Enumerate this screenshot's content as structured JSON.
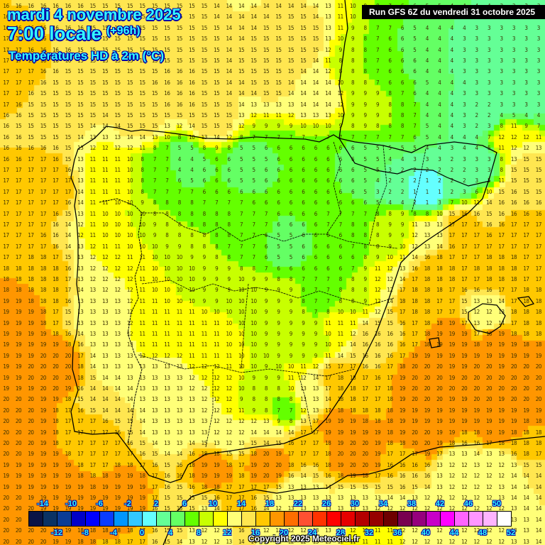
{
  "header": {
    "date": "mardi 4 novembre 2025",
    "time": "7:00 locale",
    "lead": "(+96h)",
    "variable": "Températures HD à 2m (°C)",
    "run": "Run GFS 6Z du vendredi 31 octobre 2025"
  },
  "footer": {
    "copyright": "Copyright 2025 Meteociel.fr"
  },
  "legend": {
    "top_labels": [
      "-14",
      "-10",
      "-6",
      "-2",
      "2",
      "6",
      "10",
      "14",
      "18",
      "22",
      "26",
      "30",
      "34",
      "38",
      "42",
      "46",
      "50"
    ],
    "bottom_labels": [
      "-12",
      "-8",
      "-4",
      "0",
      "4",
      "8",
      "12",
      "16",
      "20",
      "24",
      "28",
      "32",
      "36",
      "40",
      "44",
      "48",
      "52"
    ],
    "colors": [
      "#0a1446",
      "#0a3264",
      "#0a3c96",
      "#0000c8",
      "#0000ff",
      "#0a3cff",
      "#0096ff",
      "#32c8ff",
      "#64ffff",
      "#64ff96",
      "#64ff64",
      "#64ff00",
      "#c8ff00",
      "#ffff00",
      "#ffff78",
      "#ffe650",
      "#ffc800",
      "#ff9600",
      "#ff6e00",
      "#ff5032",
      "#ff3200",
      "#ff0000",
      "#e60000",
      "#b40000",
      "#960000",
      "#6e0000",
      "#780050",
      "#96007d",
      "#c800c8",
      "#ff00ff",
      "#ff64ff",
      "#ff96ff",
      "#ffb4ff",
      "#ffffff"
    ]
  },
  "chart_data": {
    "type": "heatmap",
    "title": "Températures HD à 2m (°C) — mardi 4 novembre 2025 7:00 locale (+96h), Run GFS 6Z du vendredi 31 octobre 2025",
    "region": "Iberian Peninsula, Bay of Biscay, Balearic Islands, northern Morocco/Algeria",
    "unit": "°C",
    "color_scale": {
      "min": -14,
      "max": 52,
      "step": 2
    },
    "regions": [
      {
        "name": "Bay of Biscay",
        "range": [
          13,
          16
        ]
      },
      {
        "name": "Atlantic west of Galicia/Portugal",
        "range": [
          17,
          20
        ]
      },
      {
        "name": "Galicia inland",
        "range": [
          7,
          12
        ]
      },
      {
        "name": "Cantabrian mountains",
        "range": [
          3,
          7
        ]
      },
      {
        "name": "Northern plateau (Castilla y León)",
        "range": [
          4,
          9
        ]
      },
      {
        "name": "Pyrenees",
        "range": [
          0,
          3
        ]
      },
      {
        "name": "SW France (Aquitaine)",
        "range": [
          7,
          11
        ]
      },
      {
        "name": "S France interior",
        "range": [
          1,
          8
        ]
      },
      {
        "name": "Ebro valley",
        "range": [
          8,
          10
        ]
      },
      {
        "name": "Central Spain (Madrid/La Mancha)",
        "range": [
          4,
          11
        ]
      },
      {
        "name": "Portugal interior",
        "range": [
          11,
          15
        ]
      },
      {
        "name": "Andalucía interior",
        "range": [
          9,
          15
        ]
      },
      {
        "name": "Mediterranean coast Valencia",
        "range": [
          14,
          18
        ]
      },
      {
        "name": "Western Mediterranean / Balearic Sea",
        "range": [
          17,
          20
        ]
      },
      {
        "name": "Mallorca",
        "range": [
          11,
          13
        ]
      },
      {
        "name": "Alboran Sea / Gulf of Cadiz",
        "range": [
          18,
          20
        ]
      },
      {
        "name": "Northern Morocco / Algeria",
        "range": [
          11,
          17
        ]
      }
    ],
    "sample_values": [
      {
        "area": "Atlantic NW corner",
        "values": [
          16,
          16,
          16,
          16,
          15,
          15,
          15,
          15
        ]
      },
      {
        "area": "Pyrenees line",
        "values": [
          5,
          5,
          5,
          3,
          2,
          1,
          0,
          1,
          2,
          1,
          1,
          1,
          3,
          3,
          4,
          4,
          7
        ]
      },
      {
        "area": "SW France top-right",
        "values": [
          5,
          4,
          5,
          5,
          5,
          4,
          3,
          4,
          6,
          5,
          3,
          4,
          4,
          4,
          3,
          4
        ]
      },
      {
        "area": "Atlantic off Portugal south",
        "values": [
          20,
          20,
          20,
          19,
          19,
          19,
          19,
          19,
          18,
          18,
          18,
          19,
          19
        ]
      },
      {
        "area": "Med south",
        "values": [
          20,
          20,
          20,
          20,
          20,
          20,
          20,
          20,
          20,
          20,
          20,
          20,
          20,
          20,
          20
        ]
      }
    ]
  }
}
